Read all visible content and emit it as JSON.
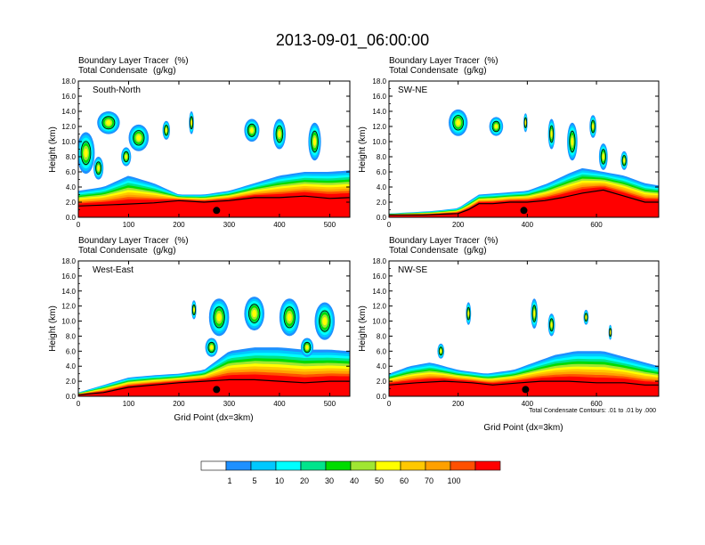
{
  "title": "2013-09-01_06:00:00",
  "chart_data": [
    {
      "type": "heatmap",
      "name": "South-North",
      "title_left_1": "Boundary Layer Tracer",
      "title_right_1": "(%)",
      "title_left_2": "Total Condensate",
      "title_right_2": "(g/kg)",
      "ylabel": "Height (km)",
      "xlabel": "",
      "xlim": [
        0,
        540
      ],
      "ylim": [
        0,
        18
      ],
      "xticks": [
        0,
        100,
        200,
        300,
        400,
        500
      ],
      "yticks": [
        0.0,
        2.0,
        4.0,
        6.0,
        8.0,
        10.0,
        12.0,
        14.0,
        16.0,
        18.0
      ],
      "marker_x": 275,
      "terrain": [
        [
          0,
          1.5
        ],
        [
          80,
          1.7
        ],
        [
          150,
          1.9
        ],
        [
          200,
          2.2
        ],
        [
          250,
          2.0
        ],
        [
          300,
          2.2
        ],
        [
          350,
          2.6
        ],
        [
          400,
          2.6
        ],
        [
          450,
          2.8
        ],
        [
          500,
          2.5
        ],
        [
          540,
          2.6
        ]
      ],
      "boundary_layer_top": [
        [
          0,
          3.5
        ],
        [
          50,
          4.0
        ],
        [
          100,
          5.5
        ],
        [
          150,
          4.5
        ],
        [
          200,
          3.0
        ],
        [
          250,
          3.0
        ],
        [
          300,
          3.5
        ],
        [
          350,
          4.5
        ],
        [
          400,
          5.5
        ],
        [
          450,
          6.0
        ],
        [
          500,
          6.0
        ],
        [
          540,
          6.2
        ]
      ],
      "clouds": [
        [
          15,
          8.5,
          35,
          5.5
        ],
        [
          60,
          12.5,
          45,
          3.0
        ],
        [
          120,
          10.5,
          40,
          3.5
        ],
        [
          175,
          11.5,
          15,
          2.5
        ],
        [
          225,
          12.5,
          10,
          3.0
        ],
        [
          345,
          11.5,
          30,
          3.0
        ],
        [
          400,
          11.0,
          25,
          4.0
        ],
        [
          470,
          10.0,
          25,
          5.0
        ],
        [
          40,
          6.5,
          20,
          3.0
        ],
        [
          95,
          8.0,
          20,
          2.5
        ]
      ]
    },
    {
      "type": "heatmap",
      "name": "SW-NE",
      "title_left_1": "Boundary Layer Tracer",
      "title_right_1": "(%)",
      "title_left_2": "Total Condensate",
      "title_right_2": "(g/kg)",
      "ylabel": "Height (km)",
      "xlabel": "",
      "xlim": [
        0,
        780
      ],
      "ylim": [
        0,
        18
      ],
      "xticks": [
        0,
        200,
        400,
        600
      ],
      "yticks": [
        0.0,
        2.0,
        4.0,
        6.0,
        8.0,
        10.0,
        12.0,
        14.0,
        16.0,
        18.0
      ],
      "marker_x": 390,
      "terrain": [
        [
          0,
          0.3
        ],
        [
          100,
          0.3
        ],
        [
          200,
          0.5
        ],
        [
          230,
          1.0
        ],
        [
          260,
          1.8
        ],
        [
          300,
          1.8
        ],
        [
          350,
          2.0
        ],
        [
          400,
          2.0
        ],
        [
          450,
          2.2
        ],
        [
          500,
          2.6
        ],
        [
          560,
          3.2
        ],
        [
          620,
          3.6
        ],
        [
          680,
          2.8
        ],
        [
          740,
          2.0
        ],
        [
          780,
          2.0
        ]
      ],
      "boundary_layer_top": [
        [
          0,
          0.5
        ],
        [
          120,
          0.8
        ],
        [
          200,
          1.2
        ],
        [
          260,
          3.0
        ],
        [
          320,
          3.2
        ],
        [
          400,
          3.5
        ],
        [
          460,
          4.5
        ],
        [
          520,
          5.8
        ],
        [
          560,
          6.5
        ],
        [
          620,
          6.0
        ],
        [
          680,
          5.5
        ],
        [
          740,
          4.5
        ],
        [
          780,
          4.2
        ]
      ],
      "clouds": [
        [
          200,
          12.5,
          55,
          3.5
        ],
        [
          310,
          12.0,
          40,
          2.5
        ],
        [
          395,
          12.5,
          12,
          2.5
        ],
        [
          470,
          11.0,
          20,
          4.0
        ],
        [
          530,
          10.0,
          30,
          5.0
        ],
        [
          590,
          12.0,
          20,
          3.0
        ],
        [
          620,
          8.0,
          25,
          3.5
        ],
        [
          680,
          7.5,
          20,
          2.5
        ]
      ]
    },
    {
      "type": "heatmap",
      "name": "West-East",
      "title_left_1": "Boundary Layer Tracer",
      "title_right_1": "(%)",
      "title_left_2": "Total Condensate",
      "title_right_2": "(g/kg)",
      "ylabel": "Height (km)",
      "xlabel": "Grid Point (dx=3km)",
      "xlim": [
        0,
        540
      ],
      "ylim": [
        0,
        18
      ],
      "xticks": [
        0,
        100,
        200,
        300,
        400,
        500
      ],
      "yticks": [
        0.0,
        2.0,
        4.0,
        6.0,
        8.0,
        10.0,
        12.0,
        14.0,
        16.0,
        18.0
      ],
      "marker_x": 275,
      "terrain": [
        [
          0,
          0.2
        ],
        [
          50,
          0.5
        ],
        [
          100,
          1.2
        ],
        [
          150,
          1.5
        ],
        [
          200,
          1.8
        ],
        [
          250,
          2.0
        ],
        [
          300,
          2.2
        ],
        [
          350,
          2.2
        ],
        [
          400,
          2.0
        ],
        [
          450,
          1.8
        ],
        [
          500,
          2.0
        ],
        [
          540,
          2.0
        ]
      ],
      "boundary_layer_top": [
        [
          0,
          0.5
        ],
        [
          50,
          1.5
        ],
        [
          100,
          2.5
        ],
        [
          150,
          2.8
        ],
        [
          200,
          3.0
        ],
        [
          250,
          3.5
        ],
        [
          300,
          6.0
        ],
        [
          350,
          6.5
        ],
        [
          400,
          6.5
        ],
        [
          450,
          6.2
        ],
        [
          500,
          6.2
        ],
        [
          540,
          6.0
        ]
      ],
      "clouds": [
        [
          230,
          11.5,
          10,
          2.5
        ],
        [
          280,
          10.5,
          40,
          5.0
        ],
        [
          350,
          11.0,
          40,
          4.5
        ],
        [
          420,
          10.5,
          40,
          5.0
        ],
        [
          490,
          10.0,
          40,
          5.0
        ],
        [
          265,
          6.5,
          25,
          2.5
        ],
        [
          455,
          6.5,
          25,
          2.5
        ]
      ]
    },
    {
      "type": "heatmap",
      "name": "NW-SE",
      "title_left_1": "Boundary Layer Tracer",
      "title_right_1": "(%)",
      "title_left_2": "Total Condensate",
      "title_right_2": "(g/kg)",
      "ylabel": "Height (km)",
      "xlabel": "Grid Point (dx=3km)",
      "xlim": [
        0,
        780
      ],
      "ylim": [
        0,
        18
      ],
      "xticks": [
        0,
        200,
        400,
        600
      ],
      "yticks": [
        0.0,
        2.0,
        4.0,
        6.0,
        8.0,
        10.0,
        12.0,
        14.0,
        16.0,
        18.0
      ],
      "marker_x": 395,
      "footnote": "Total Condensate Contours: .01 to .01 by .000",
      "terrain": [
        [
          0,
          1.5
        ],
        [
          80,
          1.8
        ],
        [
          160,
          2.0
        ],
        [
          240,
          1.8
        ],
        [
          300,
          1.5
        ],
        [
          380,
          1.8
        ],
        [
          440,
          2.0
        ],
        [
          520,
          2.0
        ],
        [
          600,
          1.8
        ],
        [
          680,
          1.8
        ],
        [
          740,
          1.5
        ],
        [
          780,
          1.5
        ]
      ],
      "boundary_layer_top": [
        [
          0,
          3.0
        ],
        [
          60,
          4.0
        ],
        [
          120,
          4.5
        ],
        [
          200,
          3.5
        ],
        [
          280,
          3.0
        ],
        [
          360,
          3.5
        ],
        [
          420,
          4.5
        ],
        [
          480,
          5.5
        ],
        [
          540,
          6.0
        ],
        [
          620,
          6.0
        ],
        [
          700,
          5.0
        ],
        [
          780,
          4.0
        ]
      ],
      "clouds": [
        [
          230,
          11.0,
          15,
          3.0
        ],
        [
          420,
          11.0,
          20,
          4.0
        ],
        [
          470,
          9.5,
          20,
          3.0
        ],
        [
          570,
          10.5,
          15,
          2.0
        ],
        [
          150,
          6.0,
          20,
          2.0
        ],
        [
          640,
          8.5,
          10,
          2.0
        ]
      ]
    }
  ],
  "colorbar": {
    "labels": [
      "1",
      "5",
      "10",
      "20",
      "30",
      "40",
      "50",
      "60",
      "70",
      "100"
    ],
    "colors": [
      "#ffffff",
      "#1e90ff",
      "#00c8ff",
      "#00ffff",
      "#00e48c",
      "#00dc00",
      "#a0e632",
      "#ffff00",
      "#ffc800",
      "#ffa000",
      "#ff5000",
      "#ff0000"
    ]
  }
}
